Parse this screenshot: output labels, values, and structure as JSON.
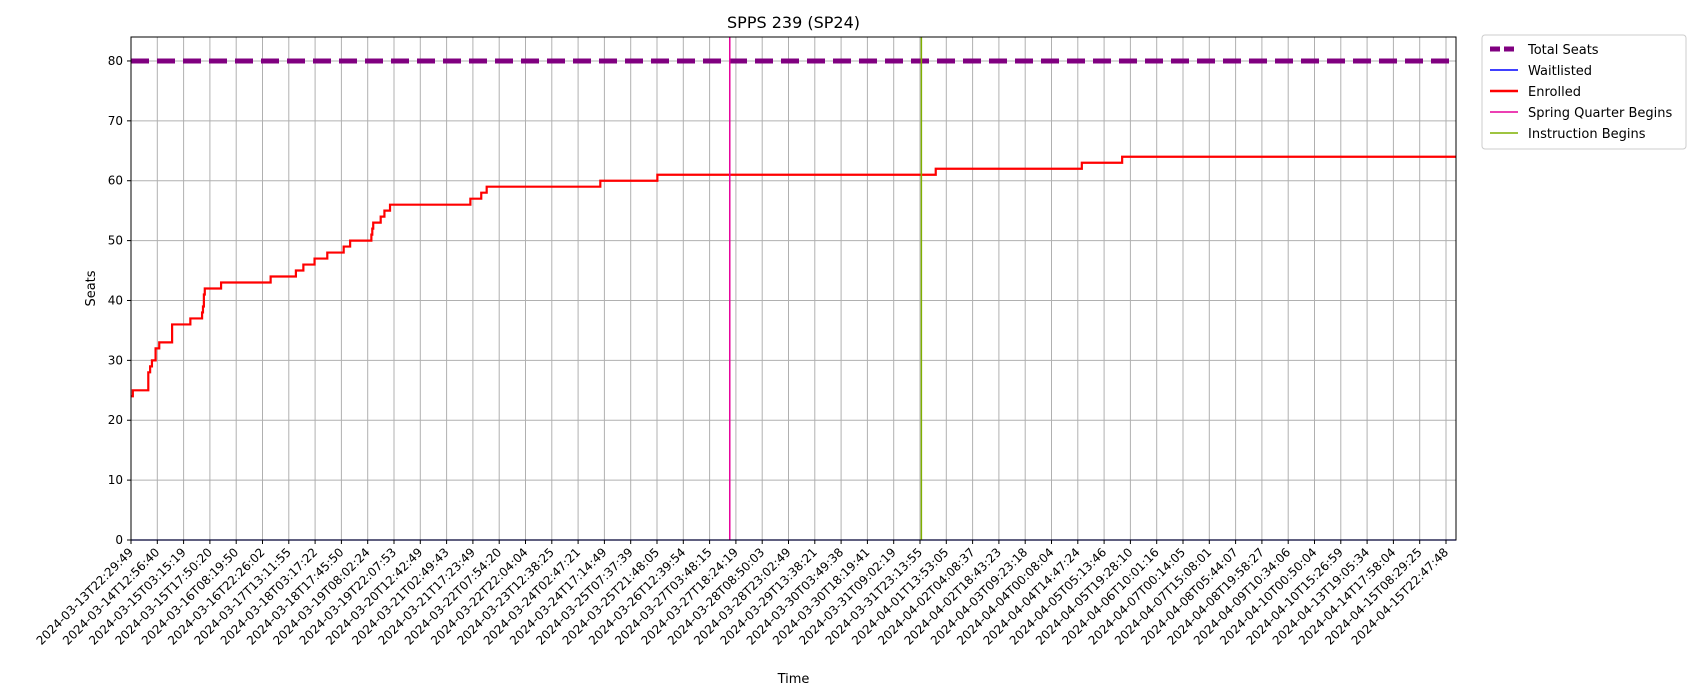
{
  "chart_data": {
    "type": "line",
    "title": "SPPS 239 (SP24)",
    "xlabel": "Time",
    "ylabel": "Seats",
    "ylim": [
      0,
      84
    ],
    "y_ticks": [
      0,
      10,
      20,
      30,
      40,
      50,
      60,
      70,
      80
    ],
    "grid": true,
    "legend_position": "outside-top-right",
    "x_ticks": [
      "2024-03-13T22:29:49",
      "2024-03-14T12:56:40",
      "2024-03-15T03:15:19",
      "2024-03-15T17:50:20",
      "2024-03-16T08:19:50",
      "2024-03-16T22:26:02",
      "2024-03-17T13:11:55",
      "2024-03-18T03:17:22",
      "2024-03-18T17:45:50",
      "2024-03-19T08:02:24",
      "2024-03-19T22:07:53",
      "2024-03-20T12:42:49",
      "2024-03-21T02:49:43",
      "2024-03-21T17:23:49",
      "2024-03-22T07:54:20",
      "2024-03-22T22:04:04",
      "2024-03-23T12:38:25",
      "2024-03-24T02:47:21",
      "2024-03-24T17:14:49",
      "2024-03-25T07:37:39",
      "2024-03-25T21:48:05",
      "2024-03-26T12:39:54",
      "2024-03-27T03:48:15",
      "2024-03-27T18:24:19",
      "2024-03-28T08:50:03",
      "2024-03-28T23:02:49",
      "2024-03-29T13:38:21",
      "2024-03-30T03:49:38",
      "2024-03-30T18:19:41",
      "2024-03-31T09:02:19",
      "2024-03-31T23:13:55",
      "2024-04-01T13:53:05",
      "2024-04-02T04:08:37",
      "2024-04-02T18:43:23",
      "2024-04-03T09:23:18",
      "2024-04-04T00:08:04",
      "2024-04-04T14:47:24",
      "2024-04-05T05:13:46",
      "2024-04-05T19:28:10",
      "2024-04-06T10:01:16",
      "2024-04-07T00:14:05",
      "2024-04-07T15:08:01",
      "2024-04-08T05:44:07",
      "2024-04-08T19:58:27",
      "2024-04-09T10:34:06",
      "2024-04-10T00:50:04",
      "2024-04-10T15:26:59",
      "2024-04-13T19:05:34",
      "2024-04-14T17:58:04",
      "2024-04-15T08:29:25",
      "2024-04-15T22:47:48"
    ],
    "series": [
      {
        "name": "Total Seats",
        "color": "#800080",
        "style": "dashed-thick",
        "points": [
          [
            "2024-03-13T22:29:49",
            80
          ],
          [
            "2024-04-15T22:47:48",
            80
          ]
        ]
      },
      {
        "name": "Waitlisted",
        "color": "#0000ff",
        "style": "solid-thin",
        "points": [
          [
            "2024-03-13T22:29:49",
            0
          ],
          [
            "2024-04-15T22:47:48",
            0
          ]
        ]
      },
      {
        "name": "Enrolled",
        "color": "#ff0000",
        "style": "step",
        "points": [
          [
            "2024-03-13T22:29:49",
            24
          ],
          [
            "2024-03-13T23:30:00",
            25
          ],
          [
            "2024-03-14T08:00:00",
            28
          ],
          [
            "2024-03-14T09:00:00",
            29
          ],
          [
            "2024-03-14T10:00:00",
            30
          ],
          [
            "2024-03-14T12:00:00",
            32
          ],
          [
            "2024-03-14T14:00:00",
            33
          ],
          [
            "2024-03-14T21:00:00",
            36
          ],
          [
            "2024-03-15T07:00:00",
            37
          ],
          [
            "2024-03-15T13:30:00",
            38
          ],
          [
            "2024-03-15T14:00:00",
            39
          ],
          [
            "2024-03-15T14:30:00",
            41
          ],
          [
            "2024-03-15T15:00:00",
            42
          ],
          [
            "2024-03-16T00:00:00",
            43
          ],
          [
            "2024-03-17T03:00:00",
            44
          ],
          [
            "2024-03-17T17:00:00",
            45
          ],
          [
            "2024-03-17T21:00:00",
            46
          ],
          [
            "2024-03-18T03:00:00",
            47
          ],
          [
            "2024-03-18T10:00:00",
            48
          ],
          [
            "2024-03-18T19:00:00",
            49
          ],
          [
            "2024-03-18T22:30:00",
            50
          ],
          [
            "2024-03-19T10:00:00",
            51
          ],
          [
            "2024-03-19T10:30:00",
            52
          ],
          [
            "2024-03-19T11:00:00",
            53
          ],
          [
            "2024-03-19T15:00:00",
            54
          ],
          [
            "2024-03-19T17:00:00",
            55
          ],
          [
            "2024-03-19T20:00:00",
            56
          ],
          [
            "2024-03-21T16:00:00",
            57
          ],
          [
            "2024-03-21T22:00:00",
            58
          ],
          [
            "2024-03-22T01:00:00",
            59
          ],
          [
            "2024-03-24T15:00:00",
            60
          ],
          [
            "2024-03-25T22:00:00",
            61
          ],
          [
            "2024-04-01T08:00:00",
            62
          ],
          [
            "2024-04-04T17:00:00",
            63
          ],
          [
            "2024-04-05T15:00:00",
            64
          ],
          [
            "2024-04-16T02:00:00",
            64
          ]
        ]
      },
      {
        "name": "Spring Quarter Begins",
        "color": "#e6009a",
        "style": "vertical-line",
        "x": "2024-03-27T15:00:00"
      },
      {
        "name": "Instruction Begins",
        "color": "#7fb000",
        "style": "vertical-line",
        "x": "2024-04-01T00:00:00"
      }
    ]
  }
}
